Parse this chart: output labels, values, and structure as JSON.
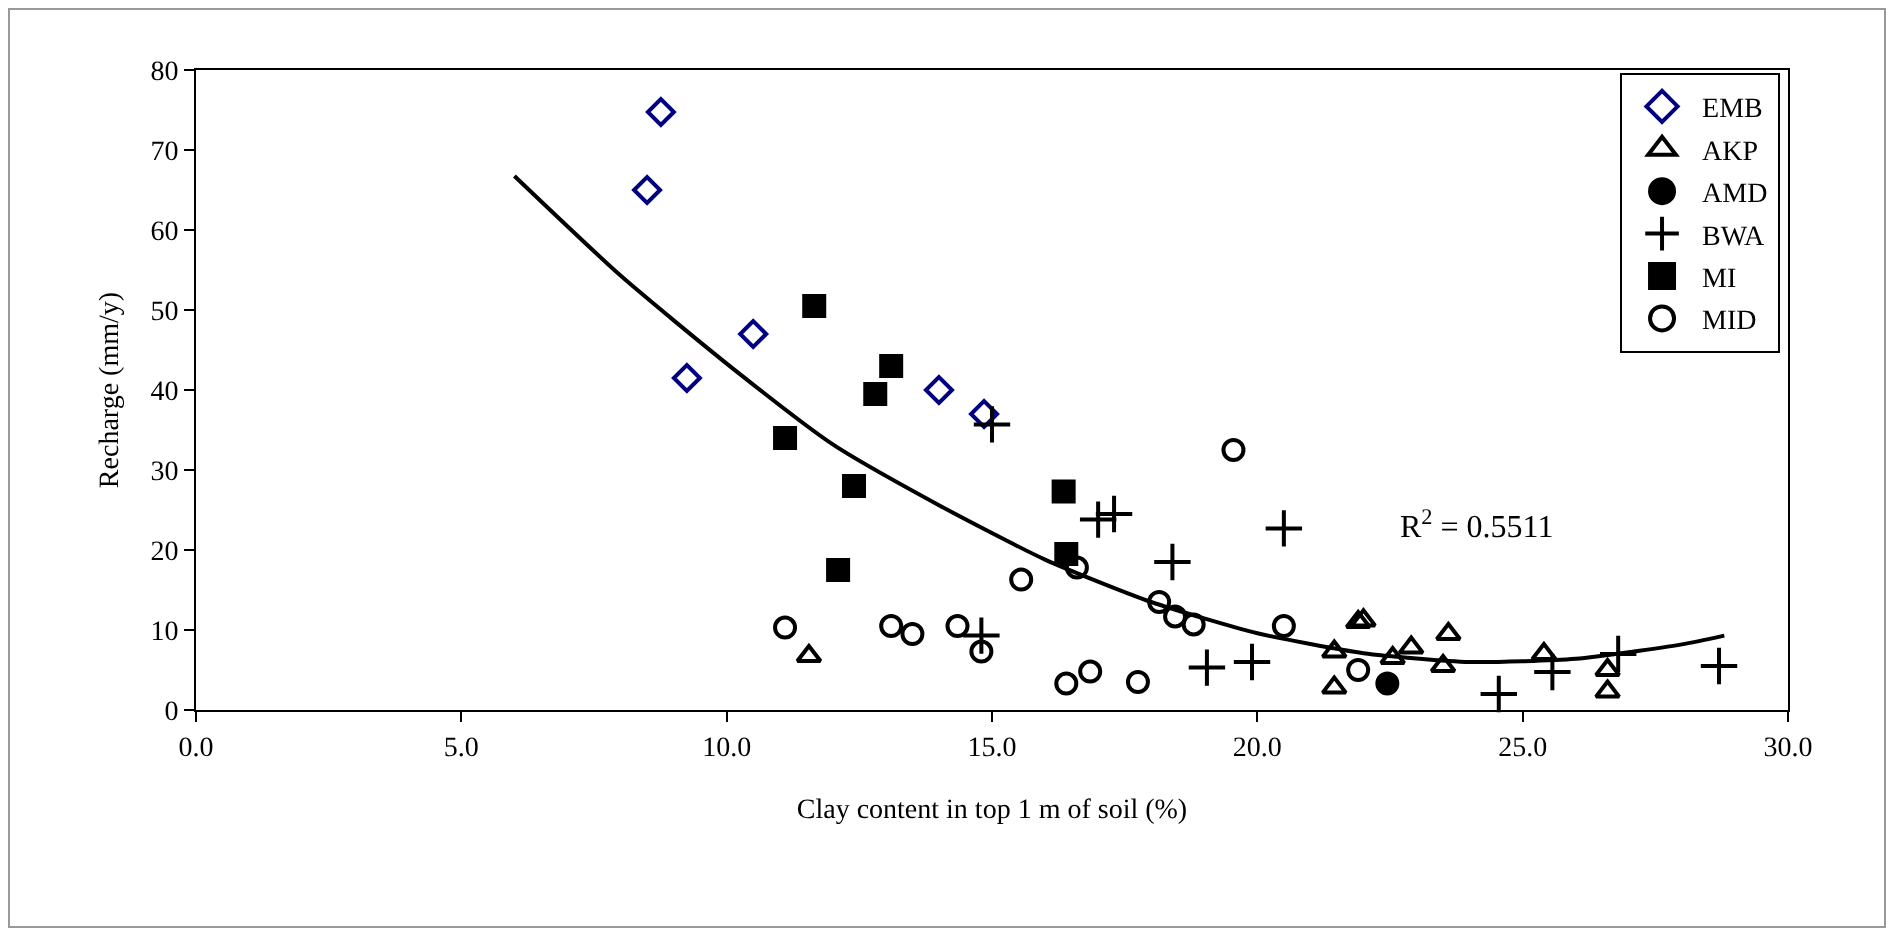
{
  "chart_data": {
    "type": "scatter",
    "xlabel": "Clay content in top 1 m of soil (%)",
    "ylabel": "Recharge (mm/y)",
    "xlim": [
      0,
      30
    ],
    "xticks": [
      {
        "value": 0,
        "label": "0.0"
      },
      {
        "value": 5,
        "label": "5.0"
      },
      {
        "value": 10,
        "label": "10.0"
      },
      {
        "value": 15,
        "label": "15.0"
      },
      {
        "value": 20,
        "label": "20.0"
      },
      {
        "value": 25,
        "label": "25.0"
      },
      {
        "value": 30,
        "label": "30.0"
      }
    ],
    "ylim": [
      0,
      80
    ],
    "yticks": [
      0,
      10,
      20,
      30,
      40,
      50,
      60,
      70,
      80
    ],
    "grid": false,
    "legend": "top right",
    "annotations": [
      "R$^{2}$ = 0.5511"
    ],
    "series": [
      {
        "name": "EMB",
        "color": "#000080",
        "marker": "diamond",
        "x": [
          8.5,
          8.76,
          9.25,
          10.5,
          14.0,
          14.85
        ],
        "values": [
          65,
          74.75,
          41.5,
          47,
          40,
          37
        ]
      },
      {
        "name": "AKP",
        "color": "#000000",
        "marker": "triangle",
        "x": [
          11.55,
          21.45,
          21.45,
          21.9,
          22.0,
          22.55,
          22.9,
          23.6,
          23.5,
          25.4,
          26.6,
          26.6
        ],
        "values": [
          6.75,
          7.3,
          2.8,
          11,
          11.2,
          6.5,
          7.8,
          9.5,
          5.5,
          7.0,
          5.0,
          2.3
        ]
      },
      {
        "name": "AMD",
        "color": "#000000",
        "marker": "circle",
        "x": [
          22.45
        ],
        "values": [
          3.3
        ]
      },
      {
        "name": "BWA",
        "color": "#000000",
        "marker": "cross",
        "x": [
          15.0,
          14.8,
          17.0,
          17.3,
          18.4,
          20.5,
          19.05,
          19.9,
          24.55,
          25.56,
          26.8,
          28.7
        ],
        "values": [
          35.7,
          9.3,
          23.8,
          24.5,
          18.5,
          22.7,
          5.3,
          6.0,
          2.0,
          4.75,
          7.0,
          5.5
        ]
      },
      {
        "name": "MI",
        "color": "#000000",
        "marker": "square",
        "x": [
          11.65,
          11.1,
          12.1,
          13.1,
          12.8,
          12.4,
          16.35,
          16.4
        ],
        "values": [
          50.5,
          34,
          17.5,
          43,
          39.5,
          28,
          27.3,
          19.5
        ]
      },
      {
        "name": "MID",
        "color": "#000000",
        "marker": "circle-open",
        "x": [
          11.1,
          13.1,
          13.5,
          14.35,
          14.8,
          15.55,
          16.6,
          16.4,
          16.85,
          17.75,
          19.55,
          18.15,
          18.45,
          18.8,
          20.5,
          21.9
        ],
        "values": [
          10.3,
          10.5,
          9.5,
          10.5,
          7.3,
          16.3,
          17.8,
          3.3,
          4.8,
          3.5,
          32.5,
          13.5,
          11.7,
          10.7,
          10.5,
          5.0
        ]
      },
      {
        "type": "line",
        "color": "#000000",
        "marker": "none",
        "line_style": "solid",
        "x": [
          6,
          8,
          10,
          12,
          14,
          16,
          18,
          20,
          22,
          24,
          26,
          28,
          28.8
        ],
        "values": [
          66.75,
          54.3,
          43.3,
          33.2,
          25.6,
          18.8,
          13.5,
          9.6,
          7.1,
          6.0,
          6.4,
          8.2,
          9.3
        ]
      }
    ]
  }
}
